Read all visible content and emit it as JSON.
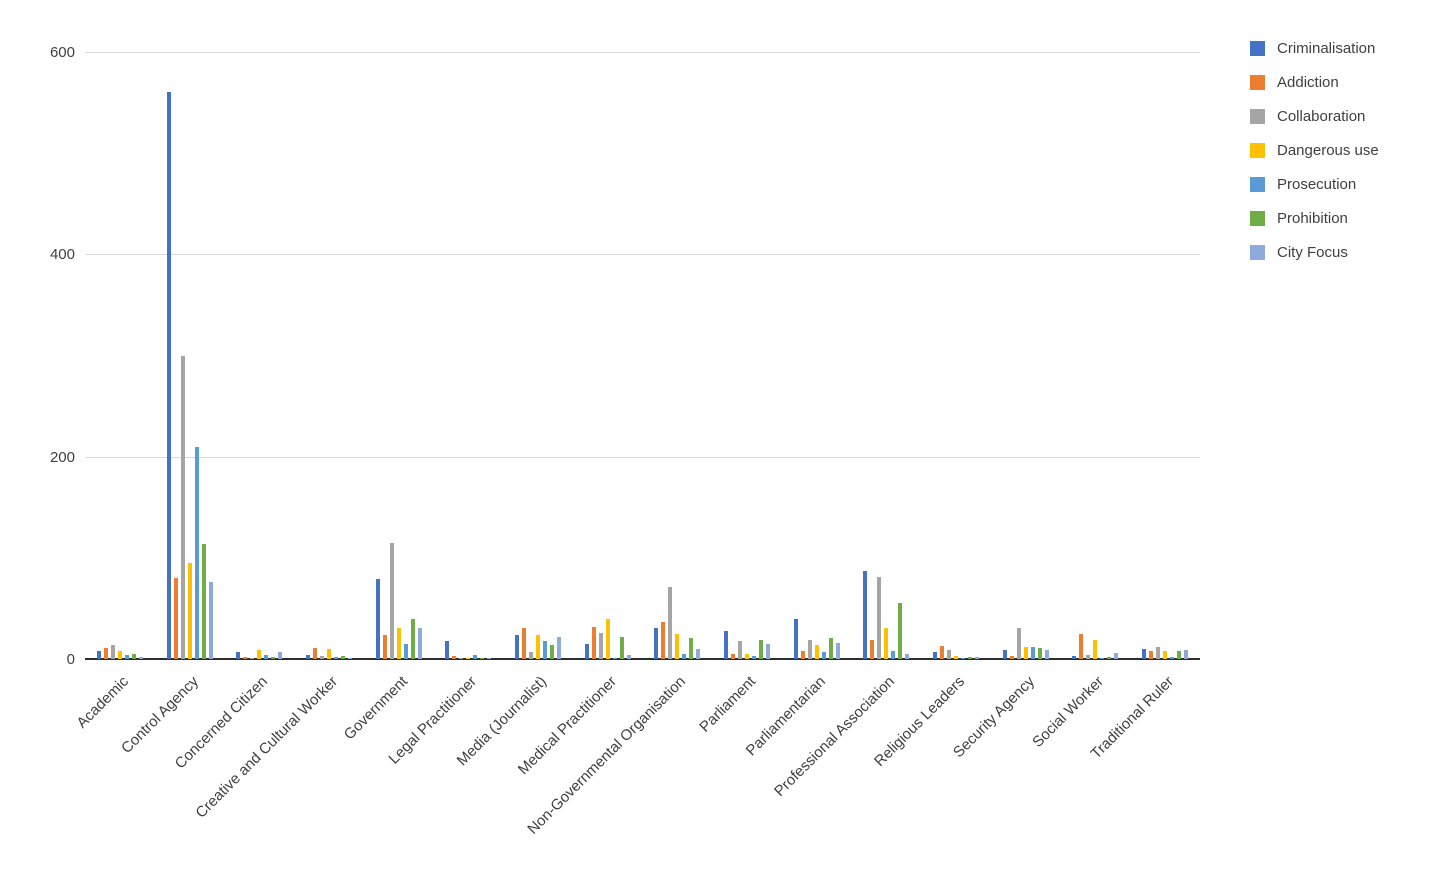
{
  "chart_data": {
    "type": "bar",
    "title": "",
    "xlabel": "",
    "ylabel": "",
    "ylim": [
      0,
      600
    ],
    "yticks": [
      0,
      200,
      400,
      600
    ],
    "grid": true,
    "legend_position": "right",
    "categories": [
      "Academic",
      "Control Agency",
      "Concerned Citizen",
      "Creative and Cultural Worker",
      "Government",
      "Legal Practitioner",
      "Media (Journalist)",
      "Medical Practitioner",
      "Non-Governmental Organisation",
      "Parliament",
      "Parliamentarian",
      "Professional Association",
      "Religious Leaders",
      "Security Agency",
      "Social Worker",
      "Traditional Ruler"
    ],
    "series": [
      {
        "name": "Criminalisation",
        "color": "#4472C4",
        "values": [
          8,
          560,
          7,
          4,
          79,
          18,
          24,
          15,
          31,
          28,
          40,
          87,
          7,
          9,
          3,
          10
        ]
      },
      {
        "name": "Addiction",
        "color": "#ED7D31",
        "values": [
          11,
          80,
          2,
          11,
          24,
          3,
          31,
          32,
          37,
          5,
          8,
          19,
          13,
          3,
          25,
          8
        ]
      },
      {
        "name": "Collaboration",
        "color": "#A5A5A5",
        "values": [
          14,
          300,
          1,
          3,
          115,
          1,
          7,
          26,
          71,
          18,
          19,
          81,
          9,
          31,
          4,
          12
        ]
      },
      {
        "name": "Dangerous use",
        "color": "#FFC000",
        "values": [
          8,
          95,
          9,
          10,
          31,
          1,
          24,
          40,
          25,
          5,
          14,
          31,
          3,
          12,
          19,
          8
        ]
      },
      {
        "name": "Prosecution",
        "color": "#5B9BD5",
        "values": [
          4,
          210,
          4,
          2,
          15,
          4,
          18,
          1,
          5,
          3,
          7,
          8,
          1,
          12,
          1,
          2
        ]
      },
      {
        "name": "Prohibition",
        "color": "#70AD47",
        "values": [
          5,
          114,
          2,
          3,
          40,
          1,
          14,
          22,
          21,
          19,
          21,
          55,
          2,
          11,
          2,
          8
        ]
      },
      {
        "name": "City Focus",
        "color": "#8EA9DB",
        "values": [
          2,
          76,
          7,
          1,
          31,
          1,
          22,
          4,
          10,
          15,
          16,
          5,
          2,
          9,
          6,
          9
        ]
      }
    ]
  },
  "colors": {
    "background": "#ffffff",
    "gridline": "#d9d9d9",
    "axis": "#2e2e2e",
    "text": "#404040"
  }
}
